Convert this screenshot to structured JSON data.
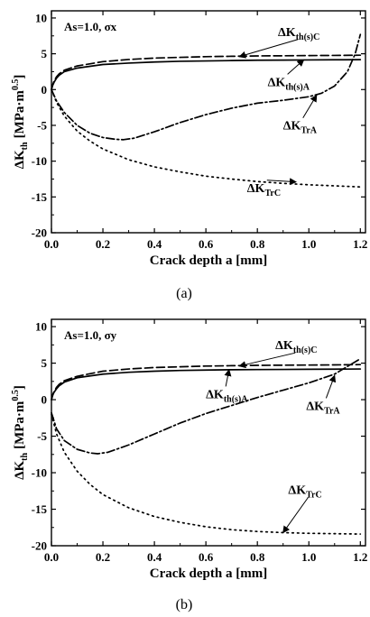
{
  "chart_data": [
    {
      "type": "line",
      "caption": "(a)",
      "condition_label": "As=1.0, σx",
      "xlabel": "Crack depth a [mm]",
      "ylabel": "ΔKth [MPa·m0.5]",
      "ylabel_main": "ΔK",
      "ylabel_sub": "th",
      "ylabel_unit": "[MPa·m",
      "ylabel_exp": "0.5",
      "ylabel_close": "]",
      "xlim": [
        0,
        1.22
      ],
      "ylim": [
        -20,
        11
      ],
      "xticks": [
        0.0,
        0.2,
        0.4,
        0.6,
        0.8,
        1.0,
        1.2
      ],
      "xtick_labels": [
        "0.0",
        "0.2",
        "0.4",
        "0.6",
        "0.8",
        "1.0",
        "1.2"
      ],
      "yticks": [
        -20,
        -15,
        -10,
        -5,
        0,
        5,
        10
      ],
      "ytick_labels": [
        "-20",
        "-15",
        "-10",
        "-5",
        "0",
        "5",
        "10"
      ],
      "series": [
        {
          "name": "ΔKth(s)C",
          "name_main": "ΔK",
          "name_sub": "th(s)C",
          "style": "dashed",
          "x": [
            0,
            0.005,
            0.01,
            0.02,
            0.03,
            0.05,
            0.1,
            0.2,
            0.3,
            0.4,
            0.5,
            0.6,
            0.7,
            0.8,
            0.9,
            1.0,
            1.1,
            1.2
          ],
          "y": [
            0,
            0.7,
            1.2,
            1.8,
            2.2,
            2.7,
            3.3,
            3.9,
            4.2,
            4.4,
            4.5,
            4.6,
            4.65,
            4.7,
            4.72,
            4.75,
            4.77,
            4.8
          ]
        },
        {
          "name": "ΔKth(s)A",
          "name_main": "ΔK",
          "name_sub": "th(s)A",
          "style": "solid",
          "x": [
            0,
            0.005,
            0.01,
            0.02,
            0.03,
            0.05,
            0.1,
            0.2,
            0.3,
            0.4,
            0.5,
            0.6,
            0.7,
            0.8,
            0.9,
            1.0,
            1.1,
            1.2
          ],
          "y": [
            0,
            0.6,
            1.0,
            1.6,
            2.0,
            2.5,
            3.0,
            3.5,
            3.7,
            3.85,
            3.95,
            4.0,
            4.05,
            4.1,
            4.12,
            4.14,
            4.16,
            4.18
          ]
        },
        {
          "name": "ΔKTrA",
          "name_main": "ΔK",
          "name_sub": "TrA",
          "style": "dashdot",
          "x": [
            0,
            0.02,
            0.05,
            0.1,
            0.15,
            0.2,
            0.25,
            0.28,
            0.32,
            0.4,
            0.5,
            0.6,
            0.7,
            0.8,
            0.9,
            1.0,
            1.05,
            1.1,
            1.15,
            1.18,
            1.2
          ],
          "y": [
            0,
            -1.6,
            -3.2,
            -5.0,
            -6.1,
            -6.7,
            -6.95,
            -7.0,
            -6.8,
            -5.9,
            -4.6,
            -3.5,
            -2.6,
            -1.9,
            -1.5,
            -1.0,
            -0.5,
            0.5,
            2.5,
            5.0,
            7.7
          ]
        },
        {
          "name": "ΔKTrC",
          "name_main": "ΔK",
          "name_sub": "TrC",
          "style": "dotted",
          "x": [
            0,
            0.02,
            0.05,
            0.1,
            0.15,
            0.2,
            0.3,
            0.4,
            0.5,
            0.6,
            0.7,
            0.8,
            0.9,
            1.0,
            1.1,
            1.2
          ],
          "y": [
            0,
            -1.8,
            -3.7,
            -5.8,
            -7.2,
            -8.3,
            -9.8,
            -10.8,
            -11.5,
            -12.1,
            -12.5,
            -12.85,
            -13.1,
            -13.3,
            -13.45,
            -13.6
          ]
        }
      ],
      "annotations": [
        {
          "series": "ΔKth(s)C",
          "label_x": 0.88,
          "label_y": 7.5,
          "arrow_to": [
            0.73,
            4.6
          ]
        },
        {
          "series": "ΔKth(s)A",
          "label_x": 0.84,
          "label_y": 0.5,
          "arrow_to": [
            0.98,
            4.15
          ]
        },
        {
          "series": "ΔKTrA",
          "label_x": 0.9,
          "label_y": -5.6,
          "arrow_to": [
            1.03,
            -0.8
          ]
        },
        {
          "series": "ΔKTrC",
          "label_x": 0.76,
          "label_y": -14.3,
          "arrow_to": [
            0.95,
            -12.9
          ]
        }
      ]
    },
    {
      "type": "line",
      "caption": "(b)",
      "condition_label": "As=1.0, σy",
      "xlabel": "Crack depth a [mm]",
      "ylabel": "ΔKth [MPa·m0.5]",
      "ylabel_main": "ΔK",
      "ylabel_sub": "th",
      "ylabel_unit": "[MPa·m",
      "ylabel_exp": "0.5",
      "ylabel_close": "]",
      "xlim": [
        0,
        1.22
      ],
      "ylim": [
        -20,
        11
      ],
      "xticks": [
        0.0,
        0.2,
        0.4,
        0.6,
        0.8,
        1.0,
        1.2
      ],
      "xtick_labels": [
        "0.0",
        "0.2",
        "0.4",
        "0.6",
        "0.8",
        "1.0",
        "1.2"
      ],
      "yticks": [
        -20,
        -15,
        -10,
        -5,
        0,
        5,
        10
      ],
      "ytick_labels": [
        "-20",
        "-15",
        "-10",
        "-5",
        "0",
        "5",
        "10"
      ],
      "series": [
        {
          "name": "ΔKth(s)C",
          "name_main": "ΔK",
          "name_sub": "th(s)C",
          "style": "dashed",
          "x": [
            0,
            0.005,
            0.01,
            0.02,
            0.03,
            0.05,
            0.1,
            0.2,
            0.3,
            0.4,
            0.5,
            0.6,
            0.7,
            0.8,
            0.9,
            1.0,
            1.1,
            1.2
          ],
          "y": [
            0,
            0.7,
            1.1,
            1.7,
            2.1,
            2.6,
            3.2,
            3.9,
            4.2,
            4.4,
            4.5,
            4.6,
            4.65,
            4.7,
            4.72,
            4.74,
            4.76,
            4.8
          ]
        },
        {
          "name": "ΔKth(s)A",
          "name_main": "ΔK",
          "name_sub": "th(s)A",
          "style": "solid",
          "x": [
            0,
            0.005,
            0.01,
            0.02,
            0.03,
            0.05,
            0.1,
            0.2,
            0.3,
            0.4,
            0.5,
            0.6,
            0.7,
            0.8,
            0.9,
            1.0,
            1.1,
            1.2
          ],
          "y": [
            0,
            0.6,
            1.0,
            1.5,
            1.9,
            2.4,
            3.0,
            3.5,
            3.75,
            3.9,
            4.0,
            4.05,
            4.1,
            4.12,
            4.14,
            4.16,
            4.18,
            4.2
          ]
        },
        {
          "name": "ΔKTrA",
          "name_main": "ΔK",
          "name_sub": "TrA",
          "style": "dashdot",
          "x": [
            0,
            0.02,
            0.05,
            0.1,
            0.15,
            0.18,
            0.22,
            0.3,
            0.4,
            0.5,
            0.6,
            0.7,
            0.8,
            0.9,
            1.0,
            1.1,
            1.2
          ],
          "y": [
            -1.8,
            -4.0,
            -5.6,
            -6.8,
            -7.3,
            -7.4,
            -7.2,
            -6.2,
            -4.7,
            -3.2,
            -1.9,
            -0.8,
            0.3,
            1.3,
            2.3,
            3.5,
            5.6
          ]
        },
        {
          "name": "ΔKTrC",
          "name_main": "ΔK",
          "name_sub": "TrC",
          "style": "dotted",
          "x": [
            0,
            0.02,
            0.05,
            0.1,
            0.15,
            0.2,
            0.3,
            0.4,
            0.5,
            0.6,
            0.7,
            0.8,
            0.9,
            1.0,
            1.1,
            1.2
          ],
          "y": [
            -2.0,
            -4.7,
            -7.2,
            -9.8,
            -11.6,
            -13.0,
            -14.8,
            -16.0,
            -16.8,
            -17.4,
            -17.8,
            -18.05,
            -18.2,
            -18.3,
            -18.35,
            -18.4
          ]
        }
      ],
      "annotations": [
        {
          "series": "ΔKth(s)C",
          "label_x": 0.87,
          "label_y": 6.9,
          "arrow_to": [
            0.73,
            4.6
          ]
        },
        {
          "series": "ΔKth(s)A",
          "label_x": 0.6,
          "label_y": 0.2,
          "arrow_to": [
            0.69,
            4.1
          ]
        },
        {
          "series": "ΔKTrA",
          "label_x": 0.99,
          "label_y": -1.4,
          "arrow_to": [
            1.1,
            3.3
          ]
        },
        {
          "series": "ΔKTrC",
          "label_x": 0.92,
          "label_y": -12.9,
          "arrow_to": [
            0.9,
            -18.2
          ]
        }
      ]
    }
  ]
}
